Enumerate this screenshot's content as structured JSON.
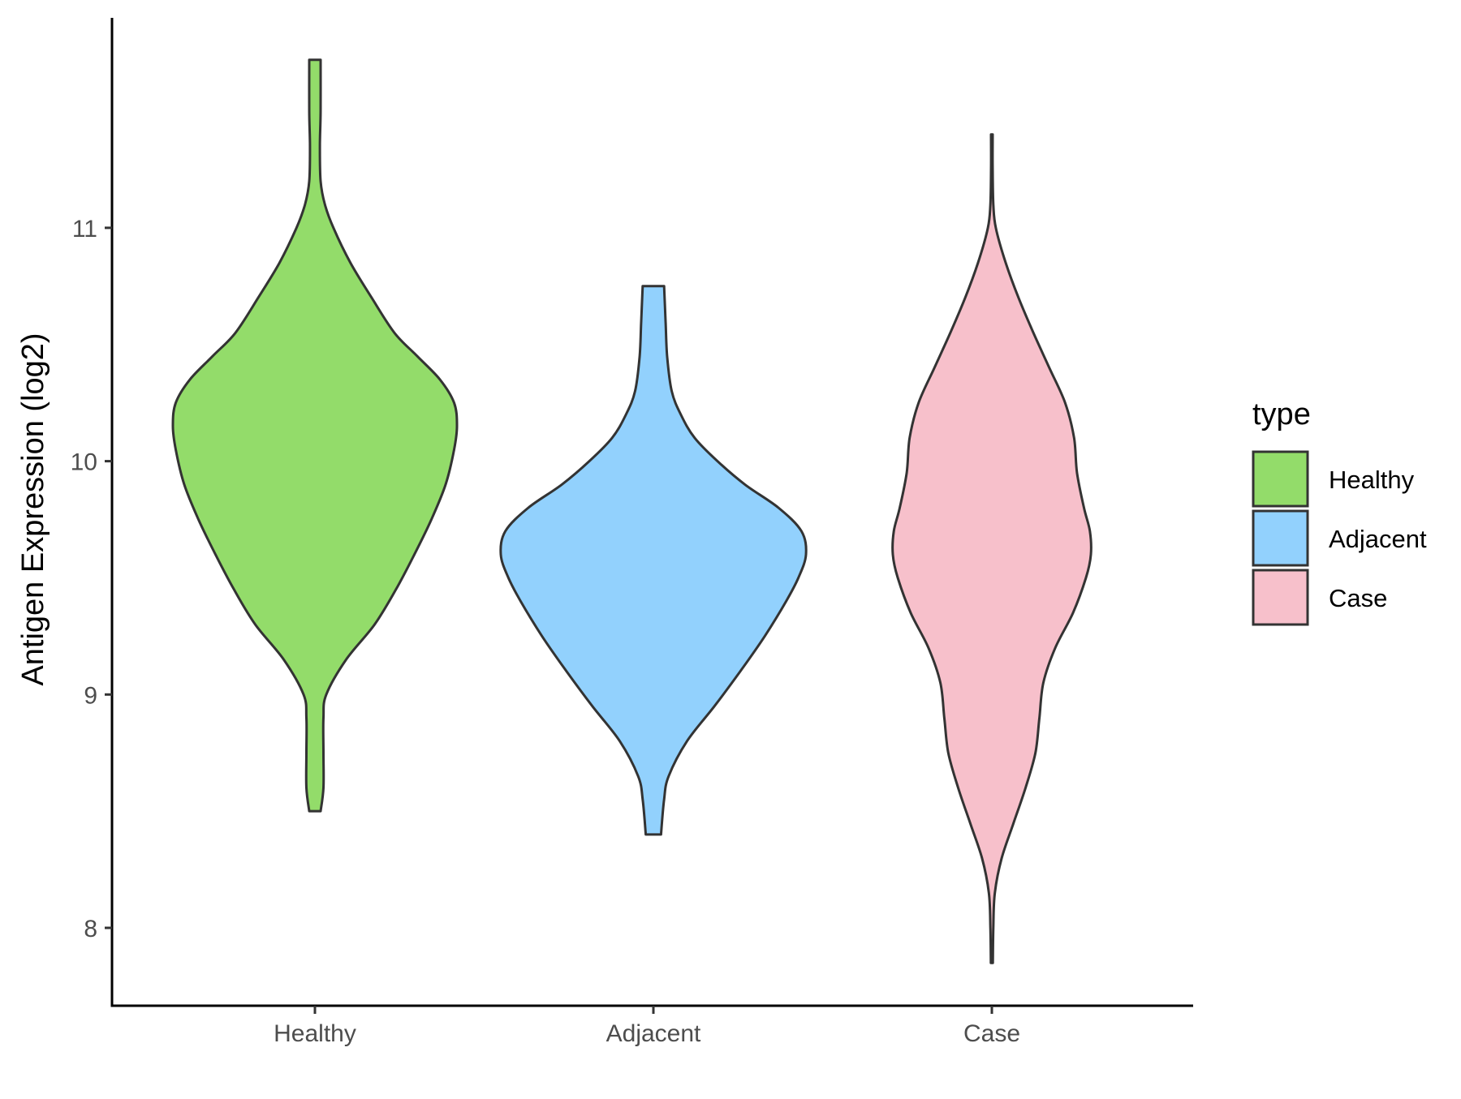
{
  "chart_data": {
    "type": "violin",
    "ylabel": "Antigen Expression (log2)",
    "xlabel": "",
    "ylim": [
      7.65,
      11.9
    ],
    "yticks": [
      8,
      9,
      10,
      11
    ],
    "categories": [
      "Healthy",
      "Adjacent",
      "Case"
    ],
    "legend": {
      "title": "type",
      "placement": "right",
      "entries": [
        "Healthy",
        "Adjacent",
        "Case"
      ]
    },
    "grid": false,
    "series": [
      {
        "name": "Healthy",
        "color": "#93dc6a",
        "min": 8.5,
        "max": 11.72,
        "profile": [
          [
            8.5,
            0.04
          ],
          [
            8.6,
            0.06
          ],
          [
            8.75,
            0.06
          ],
          [
            8.9,
            0.06
          ],
          [
            9.0,
            0.08
          ],
          [
            9.15,
            0.22
          ],
          [
            9.3,
            0.42
          ],
          [
            9.45,
            0.57
          ],
          [
            9.6,
            0.7
          ],
          [
            9.75,
            0.82
          ],
          [
            9.9,
            0.92
          ],
          [
            10.05,
            0.98
          ],
          [
            10.15,
            1.0
          ],
          [
            10.25,
            0.98
          ],
          [
            10.35,
            0.88
          ],
          [
            10.45,
            0.72
          ],
          [
            10.55,
            0.56
          ],
          [
            10.7,
            0.4
          ],
          [
            10.85,
            0.25
          ],
          [
            11.0,
            0.13
          ],
          [
            11.1,
            0.07
          ],
          [
            11.2,
            0.04
          ],
          [
            11.35,
            0.035
          ],
          [
            11.5,
            0.04
          ],
          [
            11.72,
            0.04
          ]
        ]
      },
      {
        "name": "Adjacent",
        "color": "#92d1fd",
        "min": 8.4,
        "max": 10.75,
        "profile": [
          [
            8.4,
            0.05
          ],
          [
            8.55,
            0.07
          ],
          [
            8.65,
            0.1
          ],
          [
            8.8,
            0.22
          ],
          [
            8.95,
            0.4
          ],
          [
            9.1,
            0.57
          ],
          [
            9.25,
            0.73
          ],
          [
            9.4,
            0.87
          ],
          [
            9.5,
            0.95
          ],
          [
            9.6,
            1.0
          ],
          [
            9.7,
            0.97
          ],
          [
            9.8,
            0.82
          ],
          [
            9.9,
            0.6
          ],
          [
            10.0,
            0.42
          ],
          [
            10.1,
            0.27
          ],
          [
            10.2,
            0.18
          ],
          [
            10.3,
            0.12
          ],
          [
            10.45,
            0.09
          ],
          [
            10.6,
            0.08
          ],
          [
            10.75,
            0.07
          ]
        ]
      },
      {
        "name": "Case",
        "color": "#f7c0cb",
        "min": 7.85,
        "max": 11.4,
        "profile": [
          [
            7.85,
            0.01
          ],
          [
            8.0,
            0.015
          ],
          [
            8.15,
            0.03
          ],
          [
            8.3,
            0.1
          ],
          [
            8.45,
            0.22
          ],
          [
            8.6,
            0.34
          ],
          [
            8.75,
            0.44
          ],
          [
            8.9,
            0.48
          ],
          [
            9.05,
            0.52
          ],
          [
            9.2,
            0.64
          ],
          [
            9.35,
            0.82
          ],
          [
            9.5,
            0.95
          ],
          [
            9.6,
            1.0
          ],
          [
            9.7,
            0.99
          ],
          [
            9.8,
            0.93
          ],
          [
            9.95,
            0.86
          ],
          [
            10.1,
            0.83
          ],
          [
            10.25,
            0.74
          ],
          [
            10.4,
            0.58
          ],
          [
            10.55,
            0.42
          ],
          [
            10.7,
            0.27
          ],
          [
            10.85,
            0.14
          ],
          [
            11.0,
            0.04
          ],
          [
            11.1,
            0.015
          ],
          [
            11.25,
            0.008
          ],
          [
            11.4,
            0.008
          ]
        ]
      }
    ]
  }
}
